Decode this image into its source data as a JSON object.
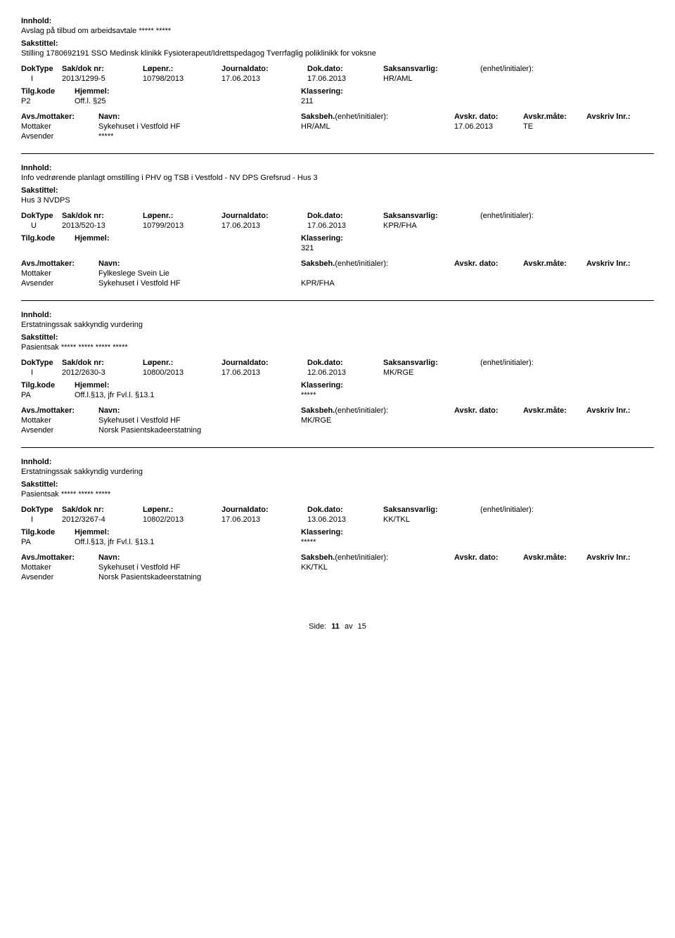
{
  "labels": {
    "innhold": "Innhold:",
    "sakstittel": "Sakstittel:",
    "doktype": "DokType",
    "sakdok": "Sak/dok nr:",
    "lopenr": "Løpenr.:",
    "journaldato": "Journaldato:",
    "dokdato": "Dok.dato:",
    "saksansvarlig": "Saksansvarlig:",
    "enhet": "(enhet/initialer):",
    "tilgkode": "Tilg.kode",
    "hjemmel": "Hjemmel:",
    "klassering": "Klassering:",
    "avsmottaker": "Avs./mottaker:",
    "navn": "Navn:",
    "saksbeh": "Saksbeh.",
    "saksbeh_enhet": "(enhet/initialer):",
    "avskr_dato": "Avskr. dato:",
    "avskr_mate": "Avskr.måte:",
    "avskriv_lnr": "Avskriv lnr.:",
    "mottaker": "Mottaker",
    "avsender": "Avsender"
  },
  "records": [
    {
      "innhold": "Avslag på tilbud om arbeidsavtale ***** *****",
      "sakstittel": "Stilling 1780692191 SSO Medinsk klinikk Fysioterapeut/Idrettspedagog Tverrfaglig poliklinikk for voksne",
      "doktype": "I",
      "sakdok": "2013/1299-5",
      "lopenr": "10798/2013",
      "journaldato": "17.06.2013",
      "dokdato": "17.06.2013",
      "saksansvarlig": "HR/AML",
      "tilgkode": "P2",
      "hjemmel": "Off.l. §25",
      "klassering": "211",
      "parties": [
        {
          "role": "Mottaker",
          "name": "Sykehuset i Vestfold HF",
          "sb": "HR/AML",
          "ad": "17.06.2013",
          "am": "TE"
        },
        {
          "role": "Avsender",
          "name": "*****",
          "sb": "",
          "ad": "",
          "am": ""
        }
      ]
    },
    {
      "innhold": "Info vedrørende planlagt omstilling i PHV og TSB i Vestfold -  NV DPS Grefsrud - Hus 3",
      "sakstittel": "Hus 3 NVDPS",
      "doktype": "U",
      "sakdok": "2013/520-13",
      "lopenr": "10799/2013",
      "journaldato": "17.06.2013",
      "dokdato": "17.06.2013",
      "saksansvarlig": "KPR/FHA",
      "tilgkode": "",
      "hjemmel": "",
      "klassering": "321",
      "parties": [
        {
          "role": "Mottaker",
          "name": "Fylkeslege Svein Lie",
          "sb": "",
          "ad": "",
          "am": ""
        },
        {
          "role": "Avsender",
          "name": "Sykehuset i Vestfold HF",
          "sb": "KPR/FHA",
          "ad": "",
          "am": ""
        }
      ]
    },
    {
      "innhold": "Erstatningssak sakkyndig vurdering",
      "sakstittel": "Pasientsak ***** ***** ***** *****",
      "doktype": "I",
      "sakdok": "2012/2630-3",
      "lopenr": "10800/2013",
      "journaldato": "17.06.2013",
      "dokdato": "12.06.2013",
      "saksansvarlig": "MK/RGE",
      "tilgkode": "PA",
      "hjemmel": "Off.l.§13, jfr Fvl.l. §13.1",
      "klassering": "*****",
      "parties": [
        {
          "role": "Mottaker",
          "name": "Sykehuset i Vestfold HF",
          "sb": "MK/RGE",
          "ad": "",
          "am": ""
        },
        {
          "role": "Avsender",
          "name": "Norsk Pasientskadeerstatning",
          "sb": "",
          "ad": "",
          "am": ""
        }
      ]
    },
    {
      "innhold": "Erstatningssak sakkyndig vurdering",
      "sakstittel": "Pasientsak ***** ***** *****",
      "doktype": "I",
      "sakdok": "2012/3267-4",
      "lopenr": "10802/2013",
      "journaldato": "17.06.2013",
      "dokdato": "13.06.2013",
      "saksansvarlig": "KK/TKL",
      "tilgkode": "PA",
      "hjemmel": "Off.l.§13, jfr Fvl.l. §13.1",
      "klassering": "*****",
      "parties": [
        {
          "role": "Mottaker",
          "name": "Sykehuset i Vestfold HF",
          "sb": "KK/TKL",
          "ad": "",
          "am": ""
        },
        {
          "role": "Avsender",
          "name": "Norsk Pasientskadeerstatning",
          "sb": "",
          "ad": "",
          "am": ""
        }
      ]
    }
  ],
  "footer": {
    "label": "Side:",
    "page": "11",
    "of": "av",
    "total": "15"
  }
}
